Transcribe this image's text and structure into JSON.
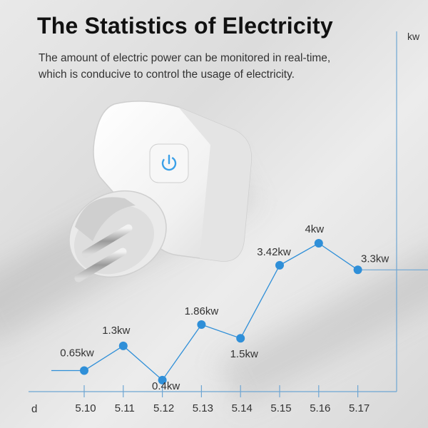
{
  "header": {
    "title": "The Statistics of Electricity",
    "subtitle_line1": "The amount of electric power can be monitored in real-time,",
    "subtitle_line2": "which is conducive to control the usage of electricity."
  },
  "colors": {
    "line": "#2f8fd8",
    "point": "#2f8fd8",
    "axis": "#6ea6d3",
    "button_accent": "#3aa0e8"
  },
  "chart_data": {
    "type": "line",
    "xlabel": "d",
    "ylabel": "kw",
    "categories": [
      "5.10",
      "5.11",
      "5.12",
      "5.13",
      "5.14",
      "5.15",
      "5.16",
      "5.17"
    ],
    "series": [
      {
        "values": [
          0.65,
          1.3,
          0.4,
          1.86,
          1.5,
          3.42,
          4,
          3.3
        ],
        "labels": [
          "0.65kw",
          "1.3kw",
          "0.4kw",
          "1.86kw",
          "1.5kw",
          "3.42kw",
          "4kw",
          "3.3kw"
        ]
      }
    ],
    "ylim": [
      0,
      5
    ],
    "grid": false
  }
}
